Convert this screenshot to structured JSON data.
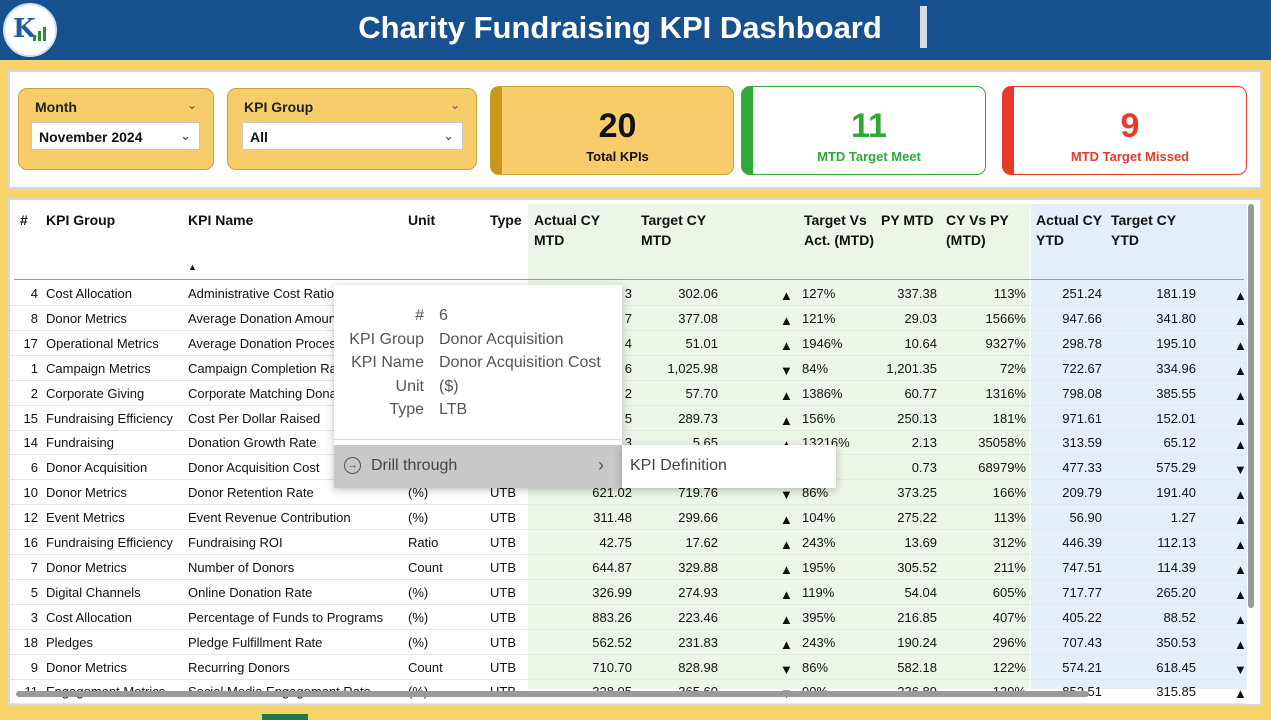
{
  "header": {
    "title": "Charity Fundraising KPI Dashboard",
    "logo_icon": "kpi-logo-icon"
  },
  "filters": {
    "month": {
      "label": "Month",
      "value": "November 2024"
    },
    "kpi_group": {
      "label": "KPI Group",
      "value": "All"
    }
  },
  "cards": {
    "total": {
      "value": "20",
      "caption": "Total KPIs"
    },
    "meet": {
      "value": "11",
      "caption": "MTD Target Meet",
      "color": "#2ea836"
    },
    "missed": {
      "value": "9",
      "caption": "MTD Target Missed",
      "color": "#e63a2a"
    }
  },
  "table": {
    "columns": {
      "num": "#",
      "group": "KPI Group",
      "name": "KPI Name",
      "unit": "Unit",
      "type": "Type",
      "actual_mtd": "Actual CY MTD",
      "target_mtd": "Target CY MTD",
      "tva": "Target Vs Act. (MTD)",
      "py_mtd": "PY MTD",
      "cyvspy": "CY Vs PY (MTD)",
      "actual_ytd": "Actual CY YTD",
      "target_ytd": "Target CY YTD"
    },
    "rows": [
      {
        "num": "4",
        "group": "Cost Allocation",
        "name": "Administrative Cost Ratio",
        "unit": "",
        "type": "",
        "actual": "3",
        "target": "302.06",
        "dir": "up-red",
        "tva": "127%",
        "py": "337.38",
        "cvp": "113%",
        "aytd": "251.24",
        "tytd": "181.19",
        "ydir": "up-red"
      },
      {
        "num": "8",
        "group": "Donor Metrics",
        "name": "Average Donation Amount",
        "unit": "",
        "type": "",
        "actual": "7",
        "target": "377.08",
        "dir": "up-green",
        "tva": "121%",
        "py": "29.03",
        "cvp": "1566%",
        "aytd": "947.66",
        "tytd": "341.80",
        "ydir": "up-green"
      },
      {
        "num": "17",
        "group": "Operational Metrics",
        "name": "Average Donation Processing",
        "unit": "",
        "type": "",
        "actual": "4",
        "target": "51.01",
        "dir": "up-red",
        "tva": "1946%",
        "py": "10.64",
        "cvp": "9327%",
        "aytd": "298.78",
        "tytd": "195.10",
        "ydir": "up-red"
      },
      {
        "num": "1",
        "group": "Campaign Metrics",
        "name": "Campaign Completion Rate",
        "unit": "",
        "type": "",
        "actual": "6",
        "target": "1,025.98",
        "dir": "down-red",
        "tva": "84%",
        "py": "1,201.35",
        "cvp": "72%",
        "aytd": "722.67",
        "tytd": "334.96",
        "ydir": "up-green"
      },
      {
        "num": "2",
        "group": "Corporate Giving",
        "name": "Corporate Matching Donations",
        "unit": "",
        "type": "",
        "actual": "2",
        "target": "57.70",
        "dir": "up-green",
        "tva": "1386%",
        "py": "60.77",
        "cvp": "1316%",
        "aytd": "798.08",
        "tytd": "385.55",
        "ydir": "up-green"
      },
      {
        "num": "15",
        "group": "Fundraising Efficiency",
        "name": "Cost Per Dollar Raised",
        "unit": "",
        "type": "",
        "actual": "5",
        "target": "289.73",
        "dir": "up-red",
        "tva": "156%",
        "py": "250.13",
        "cvp": "181%",
        "aytd": "971.61",
        "tytd": "152.01",
        "ydir": "up-red"
      },
      {
        "num": "14",
        "group": "Fundraising",
        "name": "Donation Growth Rate",
        "unit": "",
        "type": "",
        "actual": "3",
        "target": "5.65",
        "dir": "up-green",
        "tva": "13216%",
        "py": "2.13",
        "cvp": "35058%",
        "aytd": "313.59",
        "tytd": "65.12",
        "ydir": "up-green"
      },
      {
        "num": "6",
        "group": "Donor Acquisition",
        "name": "Donor Acquisition Cost",
        "unit": "",
        "type": "",
        "actual": "",
        "target": "",
        "dir": "",
        "tva": "%",
        "py": "0.73",
        "cvp": "68979%",
        "aytd": "477.33",
        "tytd": "575.29",
        "ydir": "down-green"
      },
      {
        "num": "10",
        "group": "Donor Metrics",
        "name": "Donor Retention Rate",
        "unit": "(%)",
        "type": "UTB",
        "actual": "621.02",
        "target": "719.76",
        "dir": "down-red",
        "tva": "86%",
        "py": "373.25",
        "cvp": "166%",
        "aytd": "209.79",
        "tytd": "191.40",
        "ydir": "up-green"
      },
      {
        "num": "12",
        "group": "Event Metrics",
        "name": "Event Revenue Contribution",
        "unit": "(%)",
        "type": "UTB",
        "actual": "311.48",
        "target": "299.66",
        "dir": "up-green",
        "tva": "104%",
        "py": "275.22",
        "cvp": "113%",
        "aytd": "56.90",
        "tytd": "1.27",
        "ydir": "up-green"
      },
      {
        "num": "16",
        "group": "Fundraising Efficiency",
        "name": "Fundraising ROI",
        "unit": "Ratio",
        "type": "UTB",
        "actual": "42.75",
        "target": "17.62",
        "dir": "up-green",
        "tva": "243%",
        "py": "13.69",
        "cvp": "312%",
        "aytd": "446.39",
        "tytd": "112.13",
        "ydir": "up-green"
      },
      {
        "num": "7",
        "group": "Donor Metrics",
        "name": "Number of Donors",
        "unit": "Count",
        "type": "UTB",
        "actual": "644.87",
        "target": "329.88",
        "dir": "up-green",
        "tva": "195%",
        "py": "305.52",
        "cvp": "211%",
        "aytd": "747.51",
        "tytd": "114.39",
        "ydir": "up-green"
      },
      {
        "num": "5",
        "group": "Digital Channels",
        "name": "Online Donation Rate",
        "unit": "(%)",
        "type": "UTB",
        "actual": "326.99",
        "target": "274.93",
        "dir": "up-green",
        "tva": "119%",
        "py": "54.04",
        "cvp": "605%",
        "aytd": "717.77",
        "tytd": "265.20",
        "ydir": "up-green"
      },
      {
        "num": "3",
        "group": "Cost Allocation",
        "name": "Percentage of Funds to Programs",
        "unit": "(%)",
        "type": "UTB",
        "actual": "883.26",
        "target": "223.46",
        "dir": "up-green",
        "tva": "395%",
        "py": "216.85",
        "cvp": "407%",
        "aytd": "405.22",
        "tytd": "88.52",
        "ydir": "up-green"
      },
      {
        "num": "18",
        "group": "Pledges",
        "name": "Pledge Fulfillment Rate",
        "unit": "(%)",
        "type": "UTB",
        "actual": "562.52",
        "target": "231.83",
        "dir": "up-green",
        "tva": "243%",
        "py": "190.24",
        "cvp": "296%",
        "aytd": "707.43",
        "tytd": "350.53",
        "ydir": "up-green"
      },
      {
        "num": "9",
        "group": "Donor Metrics",
        "name": "Recurring Donors",
        "unit": "Count",
        "type": "UTB",
        "actual": "710.70",
        "target": "828.98",
        "dir": "down-red",
        "tva": "86%",
        "py": "582.18",
        "cvp": "122%",
        "aytd": "574.21",
        "tytd": "618.45",
        "ydir": "down-red"
      },
      {
        "num": "11",
        "group": "Engagement Metrics",
        "name": "Social Media Engagement Rate",
        "unit": "(%)",
        "type": "UTB",
        "actual": "328.95",
        "target": "365.60",
        "dir": "down-red",
        "tva": "90%",
        "py": "236.89",
        "cvp": "139%",
        "aytd": "852.51",
        "tytd": "315.85",
        "ydir": "up-green"
      }
    ]
  },
  "tooltip": {
    "fields": [
      {
        "key": "#",
        "value": "6"
      },
      {
        "key": "KPI Group",
        "value": "Donor Acquisition"
      },
      {
        "key": "KPI Name",
        "value": "Donor Acquisition Cost"
      },
      {
        "key": "Unit",
        "value": "($)"
      },
      {
        "key": "Type",
        "value": "LTB"
      }
    ],
    "drill_label": "Drill through",
    "submenu_item": "KPI Definition"
  },
  "colors": {
    "header_bg": "#16508f",
    "page_bg": "#f6d46a",
    "up": "#1e8a2a",
    "down": "#e01c12"
  }
}
